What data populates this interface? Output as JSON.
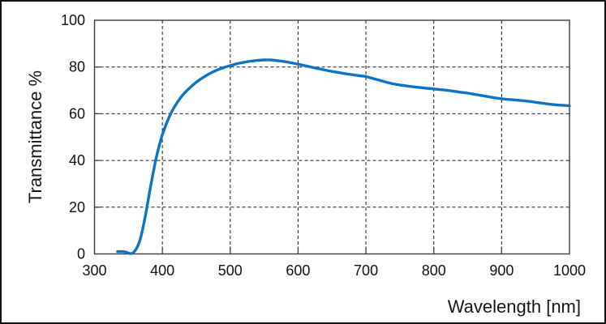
{
  "figure": {
    "background": "#ffffff",
    "outer_border_color": "#141414"
  },
  "chart_data": {
    "type": "line",
    "title": "",
    "xlabel": "Wavelength [nm]",
    "ylabel": "Transmittance %",
    "xlim": [
      300,
      1000
    ],
    "ylim": [
      0,
      100
    ],
    "x_ticks": [
      300,
      400,
      500,
      600,
      700,
      800,
      900,
      1000
    ],
    "y_ticks": [
      0,
      20,
      40,
      60,
      80,
      100
    ],
    "grid": "dashed",
    "grid_color": "#1a1a1a",
    "axis_color": "#3c3c3c",
    "text_color": "#111111",
    "legend": "none",
    "series": [
      {
        "name": "transmittance",
        "color": "#0d73c2",
        "points": [
          [
            334,
            1
          ],
          [
            340,
            1
          ],
          [
            346,
            0.8
          ],
          [
            352,
            0.2
          ],
          [
            356,
            0.3
          ],
          [
            360,
            1.5
          ],
          [
            364,
            3.5
          ],
          [
            368,
            7
          ],
          [
            372,
            12
          ],
          [
            376,
            18
          ],
          [
            380,
            24.5
          ],
          [
            384,
            31
          ],
          [
            388,
            37
          ],
          [
            392,
            42.5
          ],
          [
            396,
            47
          ],
          [
            400,
            51
          ],
          [
            405,
            55
          ],
          [
            410,
            58.5
          ],
          [
            415,
            61.5
          ],
          [
            420,
            64
          ],
          [
            430,
            68
          ],
          [
            440,
            71
          ],
          [
            450,
            73.5
          ],
          [
            460,
            75.5
          ],
          [
            470,
            77.2
          ],
          [
            480,
            78.6
          ],
          [
            490,
            79.7
          ],
          [
            500,
            80.6
          ],
          [
            510,
            81.4
          ],
          [
            520,
            82
          ],
          [
            530,
            82.5
          ],
          [
            540,
            82.8
          ],
          [
            550,
            83
          ],
          [
            560,
            83
          ],
          [
            570,
            82.7
          ],
          [
            580,
            82.3
          ],
          [
            590,
            81.8
          ],
          [
            600,
            81.2
          ],
          [
            610,
            80.6
          ],
          [
            620,
            79.9
          ],
          [
            630,
            79.3
          ],
          [
            640,
            78.7
          ],
          [
            650,
            78.1
          ],
          [
            660,
            77.6
          ],
          [
            670,
            77.1
          ],
          [
            680,
            76.7
          ],
          [
            690,
            76.3
          ],
          [
            700,
            75.9
          ],
          [
            710,
            75.1
          ],
          [
            720,
            74.3
          ],
          [
            730,
            73.5
          ],
          [
            740,
            72.8
          ],
          [
            750,
            72.3
          ],
          [
            760,
            71.9
          ],
          [
            770,
            71.5
          ],
          [
            780,
            71.2
          ],
          [
            790,
            70.9
          ],
          [
            800,
            70.6
          ],
          [
            810,
            70.3
          ],
          [
            820,
            70
          ],
          [
            830,
            69.6
          ],
          [
            840,
            69.2
          ],
          [
            850,
            68.8
          ],
          [
            860,
            68.3
          ],
          [
            870,
            67.8
          ],
          [
            880,
            67.3
          ],
          [
            890,
            66.8
          ],
          [
            900,
            66.4
          ],
          [
            910,
            66.1
          ],
          [
            920,
            65.9
          ],
          [
            930,
            65.6
          ],
          [
            940,
            65.3
          ],
          [
            950,
            64.9
          ],
          [
            960,
            64.5
          ],
          [
            970,
            64.1
          ],
          [
            980,
            63.8
          ],
          [
            990,
            63.6
          ],
          [
            1000,
            63.4
          ]
        ]
      }
    ]
  }
}
